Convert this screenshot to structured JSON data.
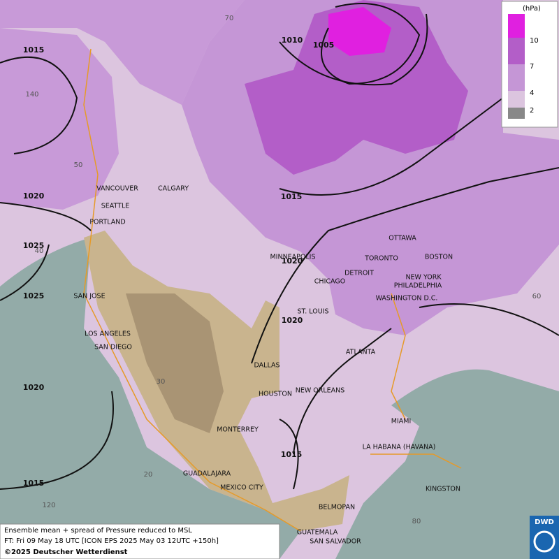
{
  "legend": {
    "unit": "(hPa)",
    "levels": [
      10,
      7,
      4,
      2
    ]
  },
  "isobar_labels": [
    1015,
    1010,
    1005,
    1015,
    1020,
    1025,
    1025,
    1020,
    1020,
    1020,
    1015,
    1015
  ],
  "grid_labels": [
    140,
    70,
    50,
    40,
    60,
    30,
    20,
    120,
    80
  ],
  "cities": [
    "VANCOUVER",
    "CALGARY",
    "SEATTLE",
    "PORTLAND",
    "MINNEAPOLIS",
    "OTTAWA",
    "TORONTO",
    "BOSTON",
    "DETROIT",
    "NEW YORK",
    "CHICAGO",
    "PHILADELPHIA",
    "SAN JOSE",
    "WASHINGTON D.C.",
    "ST. LOUIS",
    "LOS ANGELES",
    "SAN DIEGO",
    "ATLANTA",
    "DALLAS",
    "HOUSTON",
    "NEW ORLEANS",
    "MIAMI",
    "MONTERREY",
    "LA HABANA (HAVANA)",
    "GUADALAJARA",
    "MEXICO CITY",
    "KINGSTON",
    "BELMOPAN",
    "GUATEMALA",
    "SAN SALVADOR"
  ],
  "footer": {
    "line1": "Ensemble mean + spread of Pressure reduced to MSL",
    "line2": "FT: Fri 09 May 18 UTC [ICON EPS 2025 May 03 12UTC +150h]",
    "line3": "©2025 Deutscher Wetterdienst"
  },
  "logo": "DWD"
}
